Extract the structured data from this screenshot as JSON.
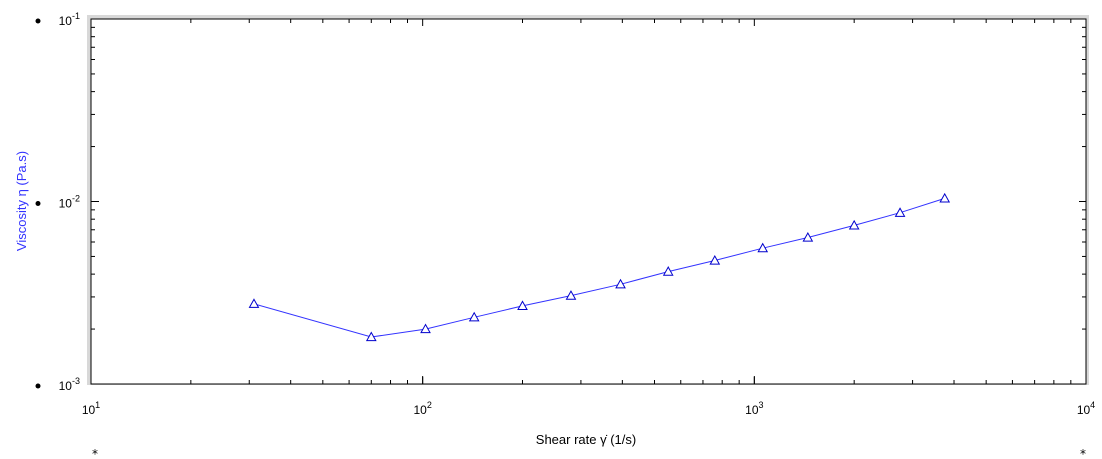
{
  "colors": {
    "series": "#3333ff",
    "marker": "#0000cc",
    "ylabel": "#3333ff",
    "frame": "#000000",
    "frame_shadow": "#d8d8d8"
  },
  "chart_data": {
    "type": "line",
    "xscale": "log",
    "yscale": "log",
    "xlim": [
      10,
      10000
    ],
    "ylim": [
      0.001,
      0.1
    ],
    "xlabel": "Shear rate  γ̇  (1/s)",
    "ylabel": "Viscosity  η  (Pa.s)",
    "x_ticks": [
      {
        "value": 10,
        "base": "10",
        "exp": "1"
      },
      {
        "value": 100,
        "base": "10",
        "exp": "2"
      },
      {
        "value": 1000,
        "base": "10",
        "exp": "3"
      },
      {
        "value": 10000,
        "base": "10",
        "exp": "4"
      }
    ],
    "y_ticks": [
      {
        "value": 0.001,
        "base": "10",
        "exp": "-3"
      },
      {
        "value": 0.01,
        "base": "10",
        "exp": "-2"
      },
      {
        "value": 0.1,
        "base": "10",
        "exp": "-1"
      }
    ],
    "grid": false,
    "series": [
      {
        "marker": "triangle",
        "x": [
          31,
          70,
          102,
          143,
          200,
          280,
          395,
          550,
          760,
          1060,
          1450,
          2000,
          2750,
          3750
        ],
        "y": [
          0.00275,
          0.00181,
          0.002,
          0.00232,
          0.00268,
          0.00305,
          0.00352,
          0.00413,
          0.00475,
          0.00555,
          0.00635,
          0.0074,
          0.00868,
          0.0104
        ]
      }
    ],
    "bottom_markers": [
      "*",
      "*"
    ]
  }
}
